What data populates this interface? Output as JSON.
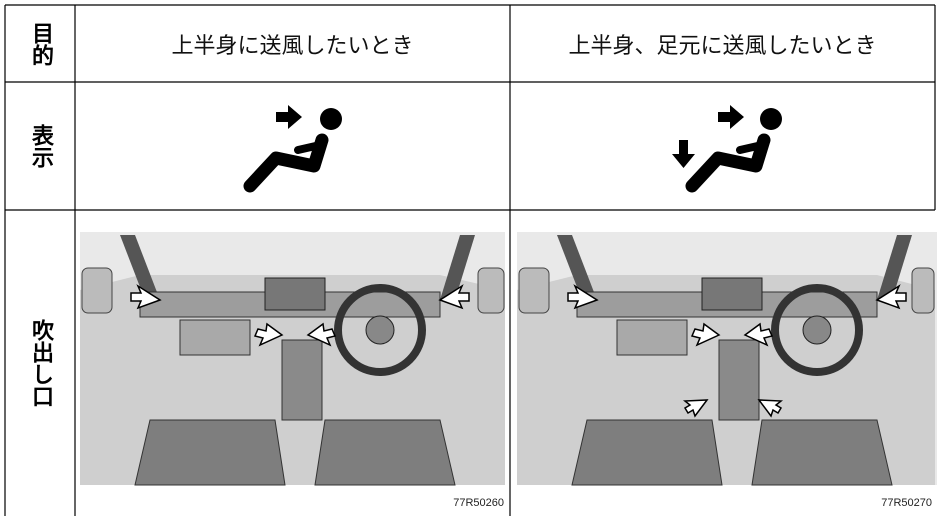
{
  "table": {
    "row_headers": [
      "目的",
      "表示",
      "吹出し口"
    ],
    "purpose": [
      "上半身に送風したいとき",
      "上半身、足元に送風したいとき"
    ],
    "image_codes": [
      "77R50260",
      "77R50270"
    ]
  }
}
